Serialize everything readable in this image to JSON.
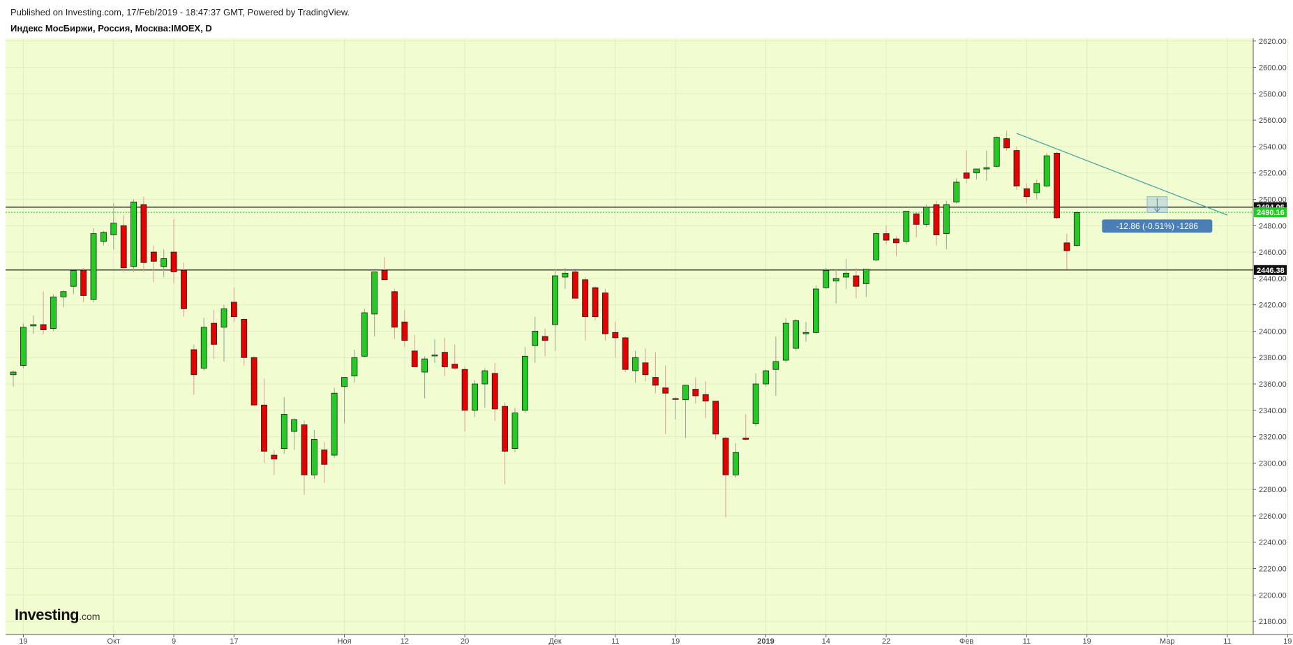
{
  "header": {
    "published": "Published on Investing.com, 17/Feb/2019 - 18:47:37 GMT, Powered by TradingView.",
    "symbol": "Индекс МосБиржи, Россия, Москва:IMOEX, D"
  },
  "logo": {
    "brand": "Investing",
    "domain": ".com"
  },
  "colors": {
    "plot_bg": "#f1fcd1",
    "up": "#22cc22",
    "down": "#e60000",
    "trendline": "#3aa39a",
    "current_price": "#22cc22",
    "measure_box": "#4a7fb5"
  },
  "chart_data": {
    "type": "candlestick",
    "title": "Индекс МосБиржи, Россия, Москва:IMOEX, D",
    "interval": "D",
    "y_axis": {
      "range": [
        2170,
        2622
      ],
      "ticks": [
        2180,
        2200,
        2220,
        2240,
        2260,
        2280,
        2300,
        2320,
        2340,
        2360,
        2380,
        2400,
        2420,
        2440,
        2460,
        2480,
        2500,
        2520,
        2540,
        2560,
        2580,
        2600,
        2620
      ],
      "tick_labels": [
        "2180.00",
        "2200.00",
        "2220.00",
        "2240.00",
        "2260.00",
        "2280.00",
        "2300.00",
        "2320.00",
        "2340.00",
        "2360.00",
        "2380.00",
        "2400.00",
        "2420.00",
        "2440.00",
        "2460.00",
        "2480.00",
        "2500.00",
        "2520.00",
        "2540.00",
        "2560.00",
        "2580.00",
        "2600.00",
        "2620.00"
      ]
    },
    "x_axis": {
      "tick_labels": [
        {
          "label": "19",
          "bar": 1
        },
        {
          "label": "Окт",
          "bar": 10
        },
        {
          "label": "9",
          "bar": 16
        },
        {
          "label": "17",
          "bar": 22
        },
        {
          "label": "Ноя",
          "bar": 33
        },
        {
          "label": "12",
          "bar": 39
        },
        {
          "label": "20",
          "bar": 45
        },
        {
          "label": "Дек",
          "bar": 54
        },
        {
          "label": "11",
          "bar": 60
        },
        {
          "label": "19",
          "bar": 66
        },
        {
          "label": "2019",
          "bar": 75
        },
        {
          "label": "14",
          "bar": 81
        },
        {
          "label": "22",
          "bar": 87
        },
        {
          "label": "Фев",
          "bar": 95
        },
        {
          "label": "11",
          "bar": 101
        },
        {
          "label": "19",
          "bar": 107
        },
        {
          "label": "Мар",
          "bar": 115
        },
        {
          "label": "11",
          "bar": 121
        },
        {
          "label": "19",
          "bar": 127
        }
      ]
    },
    "candles": [
      {
        "o": 2367,
        "h": 2370,
        "l": 2358,
        "c": 2369
      },
      {
        "o": 2374,
        "h": 2406,
        "l": 2372,
        "c": 2403
      },
      {
        "o": 2404,
        "h": 2412,
        "l": 2398,
        "c": 2405
      },
      {
        "o": 2405,
        "h": 2430,
        "l": 2398,
        "c": 2401
      },
      {
        "o": 2402,
        "h": 2428,
        "l": 2400,
        "c": 2426
      },
      {
        "o": 2426,
        "h": 2431,
        "l": 2418,
        "c": 2430
      },
      {
        "o": 2434,
        "h": 2445,
        "l": 2428,
        "c": 2446
      },
      {
        "o": 2446,
        "h": 2448,
        "l": 2422,
        "c": 2427
      },
      {
        "o": 2424,
        "h": 2478,
        "l": 2422,
        "c": 2474
      },
      {
        "o": 2468,
        "h": 2476,
        "l": 2465,
        "c": 2475
      },
      {
        "o": 2473,
        "h": 2497,
        "l": 2462,
        "c": 2482
      },
      {
        "o": 2480,
        "h": 2488,
        "l": 2445,
        "c": 2448
      },
      {
        "o": 2449,
        "h": 2500,
        "l": 2445,
        "c": 2498
      },
      {
        "o": 2496,
        "h": 2502,
        "l": 2445,
        "c": 2452
      },
      {
        "o": 2460,
        "h": 2465,
        "l": 2437,
        "c": 2453
      },
      {
        "o": 2449,
        "h": 2462,
        "l": 2441,
        "c": 2455
      },
      {
        "o": 2460,
        "h": 2485,
        "l": 2436,
        "c": 2445
      },
      {
        "o": 2446,
        "h": 2452,
        "l": 2411,
        "c": 2417
      },
      {
        "o": 2386,
        "h": 2390,
        "l": 2352,
        "c": 2367
      },
      {
        "o": 2372,
        "h": 2410,
        "l": 2370,
        "c": 2403
      },
      {
        "o": 2406,
        "h": 2416,
        "l": 2379,
        "c": 2390
      },
      {
        "o": 2403,
        "h": 2420,
        "l": 2377,
        "c": 2417
      },
      {
        "o": 2422,
        "h": 2433,
        "l": 2407,
        "c": 2411
      },
      {
        "o": 2409,
        "h": 2410,
        "l": 2374,
        "c": 2380
      },
      {
        "o": 2380,
        "h": 2381,
        "l": 2344,
        "c": 2344
      },
      {
        "o": 2344,
        "h": 2364,
        "l": 2300,
        "c": 2309
      },
      {
        "o": 2306,
        "h": 2310,
        "l": 2291,
        "c": 2303
      },
      {
        "o": 2311,
        "h": 2350,
        "l": 2307,
        "c": 2337
      },
      {
        "o": 2324,
        "h": 2334,
        "l": 2310,
        "c": 2333
      },
      {
        "o": 2329,
        "h": 2332,
        "l": 2276,
        "c": 2291
      },
      {
        "o": 2291,
        "h": 2325,
        "l": 2288,
        "c": 2318
      },
      {
        "o": 2310,
        "h": 2316,
        "l": 2285,
        "c": 2299
      },
      {
        "o": 2306,
        "h": 2357,
        "l": 2304,
        "c": 2353
      },
      {
        "o": 2358,
        "h": 2364,
        "l": 2330,
        "c": 2365
      },
      {
        "o": 2366,
        "h": 2386,
        "l": 2361,
        "c": 2380
      },
      {
        "o": 2381,
        "h": 2417,
        "l": 2380,
        "c": 2414
      },
      {
        "o": 2413,
        "h": 2445,
        "l": 2396,
        "c": 2445
      },
      {
        "o": 2446,
        "h": 2456,
        "l": 2440,
        "c": 2439
      },
      {
        "o": 2430,
        "h": 2432,
        "l": 2394,
        "c": 2403
      },
      {
        "o": 2407,
        "h": 2416,
        "l": 2388,
        "c": 2393
      },
      {
        "o": 2385,
        "h": 2397,
        "l": 2374,
        "c": 2373
      },
      {
        "o": 2369,
        "h": 2381,
        "l": 2349,
        "c": 2379
      },
      {
        "o": 2382,
        "h": 2394,
        "l": 2376,
        "c": 2382
      },
      {
        "o": 2384,
        "h": 2395,
        "l": 2366,
        "c": 2373
      },
      {
        "o": 2375,
        "h": 2390,
        "l": 2371,
        "c": 2372
      },
      {
        "o": 2371,
        "h": 2373,
        "l": 2324,
        "c": 2340
      },
      {
        "o": 2340,
        "h": 2363,
        "l": 2335,
        "c": 2360
      },
      {
        "o": 2360,
        "h": 2372,
        "l": 2342,
        "c": 2370
      },
      {
        "o": 2368,
        "h": 2376,
        "l": 2332,
        "c": 2341
      },
      {
        "o": 2343,
        "h": 2346,
        "l": 2284,
        "c": 2309
      },
      {
        "o": 2311,
        "h": 2342,
        "l": 2308,
        "c": 2338
      },
      {
        "o": 2340,
        "h": 2388,
        "l": 2338,
        "c": 2381
      },
      {
        "o": 2389,
        "h": 2411,
        "l": 2376,
        "c": 2400
      },
      {
        "o": 2396,
        "h": 2402,
        "l": 2381,
        "c": 2393
      },
      {
        "o": 2405,
        "h": 2447,
        "l": 2385,
        "c": 2442
      },
      {
        "o": 2441,
        "h": 2448,
        "l": 2432,
        "c": 2444
      },
      {
        "o": 2445,
        "h": 2446,
        "l": 2428,
        "c": 2425
      },
      {
        "o": 2439,
        "h": 2441,
        "l": 2393,
        "c": 2411
      },
      {
        "o": 2433,
        "h": 2434,
        "l": 2408,
        "c": 2411
      },
      {
        "o": 2429,
        "h": 2432,
        "l": 2393,
        "c": 2398
      },
      {
        "o": 2399,
        "h": 2407,
        "l": 2380,
        "c": 2395
      },
      {
        "o": 2395,
        "h": 2396,
        "l": 2369,
        "c": 2371
      },
      {
        "o": 2370,
        "h": 2385,
        "l": 2361,
        "c": 2380
      },
      {
        "o": 2376,
        "h": 2387,
        "l": 2362,
        "c": 2367
      },
      {
        "o": 2365,
        "h": 2384,
        "l": 2353,
        "c": 2359
      },
      {
        "o": 2357,
        "h": 2374,
        "l": 2322,
        "c": 2353
      },
      {
        "o": 2349,
        "h": 2350,
        "l": 2333,
        "c": 2349
      },
      {
        "o": 2348,
        "h": 2359,
        "l": 2319,
        "c": 2359
      },
      {
        "o": 2356,
        "h": 2365,
        "l": 2345,
        "c": 2351
      },
      {
        "o": 2352,
        "h": 2362,
        "l": 2334,
        "c": 2347
      },
      {
        "o": 2347,
        "h": 2347,
        "l": 2318,
        "c": 2322
      },
      {
        "o": 2319,
        "h": 2320,
        "l": 2259,
        "c": 2291
      },
      {
        "o": 2291,
        "h": 2315,
        "l": 2289,
        "c": 2308
      },
      {
        "o": 2319,
        "h": 2337,
        "l": 2317,
        "c": 2318
      },
      {
        "o": 2330,
        "h": 2368,
        "l": 2328,
        "c": 2360
      },
      {
        "o": 2360,
        "h": 2371,
        "l": 2358,
        "c": 2370
      },
      {
        "o": 2371,
        "h": 2396,
        "l": 2351,
        "c": 2377
      },
      {
        "o": 2378,
        "h": 2410,
        "l": 2376,
        "c": 2406
      },
      {
        "o": 2387,
        "h": 2409,
        "l": 2385,
        "c": 2408
      },
      {
        "o": 2398,
        "h": 2407,
        "l": 2392,
        "c": 2399
      },
      {
        "o": 2399,
        "h": 2435,
        "l": 2398,
        "c": 2432
      },
      {
        "o": 2433,
        "h": 2448,
        "l": 2432,
        "c": 2446
      },
      {
        "o": 2438,
        "h": 2447,
        "l": 2421,
        "c": 2440
      },
      {
        "o": 2441,
        "h": 2455,
        "l": 2432,
        "c": 2444
      },
      {
        "o": 2442,
        "h": 2448,
        "l": 2425,
        "c": 2434
      },
      {
        "o": 2436,
        "h": 2443,
        "l": 2426,
        "c": 2447
      },
      {
        "o": 2454,
        "h": 2475,
        "l": 2453,
        "c": 2474
      },
      {
        "o": 2474,
        "h": 2480,
        "l": 2466,
        "c": 2469
      },
      {
        "o": 2470,
        "h": 2472,
        "l": 2457,
        "c": 2467
      },
      {
        "o": 2468,
        "h": 2491,
        "l": 2466,
        "c": 2491
      },
      {
        "o": 2489,
        "h": 2490,
        "l": 2471,
        "c": 2481
      },
      {
        "o": 2481,
        "h": 2496,
        "l": 2479,
        "c": 2494
      },
      {
        "o": 2496,
        "h": 2499,
        "l": 2465,
        "c": 2473
      },
      {
        "o": 2474,
        "h": 2499,
        "l": 2462,
        "c": 2496
      },
      {
        "o": 2498,
        "h": 2516,
        "l": 2497,
        "c": 2513
      },
      {
        "o": 2520,
        "h": 2537,
        "l": 2512,
        "c": 2516
      },
      {
        "o": 2520,
        "h": 2522,
        "l": 2515,
        "c": 2523
      },
      {
        "o": 2523,
        "h": 2537,
        "l": 2514,
        "c": 2524
      },
      {
        "o": 2525,
        "h": 2548,
        "l": 2524,
        "c": 2547
      },
      {
        "o": 2546,
        "h": 2552,
        "l": 2537,
        "c": 2539
      },
      {
        "o": 2537,
        "h": 2540,
        "l": 2507,
        "c": 2510
      },
      {
        "o": 2508,
        "h": 2512,
        "l": 2497,
        "c": 2502
      },
      {
        "o": 2505,
        "h": 2515,
        "l": 2500,
        "c": 2512
      },
      {
        "o": 2510,
        "h": 2535,
        "l": 2509,
        "c": 2533
      },
      {
        "o": 2535,
        "h": 2536,
        "l": 2485,
        "c": 2486
      },
      {
        "o": 2467,
        "h": 2474,
        "l": 2447,
        "c": 2461
      },
      {
        "o": 2465,
        "h": 2491,
        "l": 2464,
        "c": 2490
      }
    ],
    "horizontal_lines": [
      2494.06,
      2446.38
    ],
    "price_labels": [
      {
        "value": 2494.06,
        "text": "2494.06",
        "style": "dark"
      },
      {
        "value": 2490.16,
        "text": "2490.16",
        "style": "current"
      },
      {
        "value": 2446.38,
        "text": "2446.38",
        "style": "dark"
      }
    ],
    "current_price": 2490.16,
    "trendline": {
      "start": {
        "bar": 100,
        "price": 2550
      },
      "end": {
        "bar": 121,
        "price": 2488
      }
    },
    "measure": {
      "label": "-12.86 (-0.51%) -1286",
      "bar_from": 113,
      "bar_to": 115,
      "price_from": 2502,
      "price_to": 2490
    }
  }
}
